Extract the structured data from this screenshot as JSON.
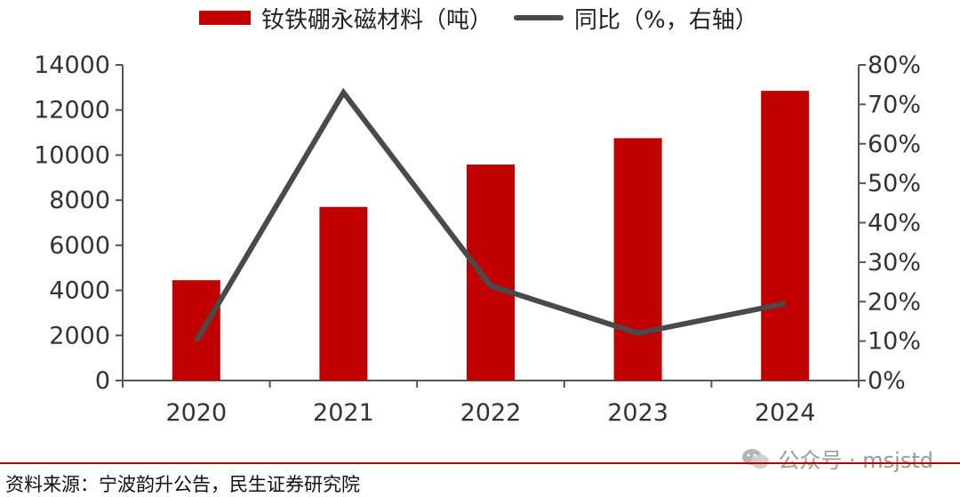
{
  "legend": {
    "bar_label": "钕铁硼永磁材料（吨）",
    "line_label": "同比（%，右轴）"
  },
  "source": "资料来源：宁波韵升公告，民生证券研究院",
  "watermark": "公众号 · msjstd",
  "colors": {
    "bar": "#c00000",
    "line": "#4a4a4a",
    "axis": "#555555"
  },
  "chart_data": {
    "type": "bar",
    "categories": [
      "2020",
      "2021",
      "2022",
      "2023",
      "2024"
    ],
    "series": [
      {
        "name": "钕铁硼永磁材料（吨）",
        "type": "bar",
        "axis": "left",
        "values": [
          4450,
          7700,
          9580,
          10750,
          12850
        ]
      },
      {
        "name": "同比（%，右轴）",
        "type": "line",
        "axis": "right",
        "values": [
          10,
          73,
          24,
          12,
          19.5
        ]
      }
    ],
    "ylim_left": [
      0,
      14000
    ],
    "yticks_left": [
      "0",
      "2000",
      "4000",
      "6000",
      "8000",
      "10000",
      "12000",
      "14000"
    ],
    "ylim_right": [
      0,
      80
    ],
    "yticks_right": [
      "0%",
      "10%",
      "20%",
      "30%",
      "40%",
      "50%",
      "60%",
      "70%",
      "80%"
    ],
    "grid": false,
    "legend_position": "top"
  }
}
